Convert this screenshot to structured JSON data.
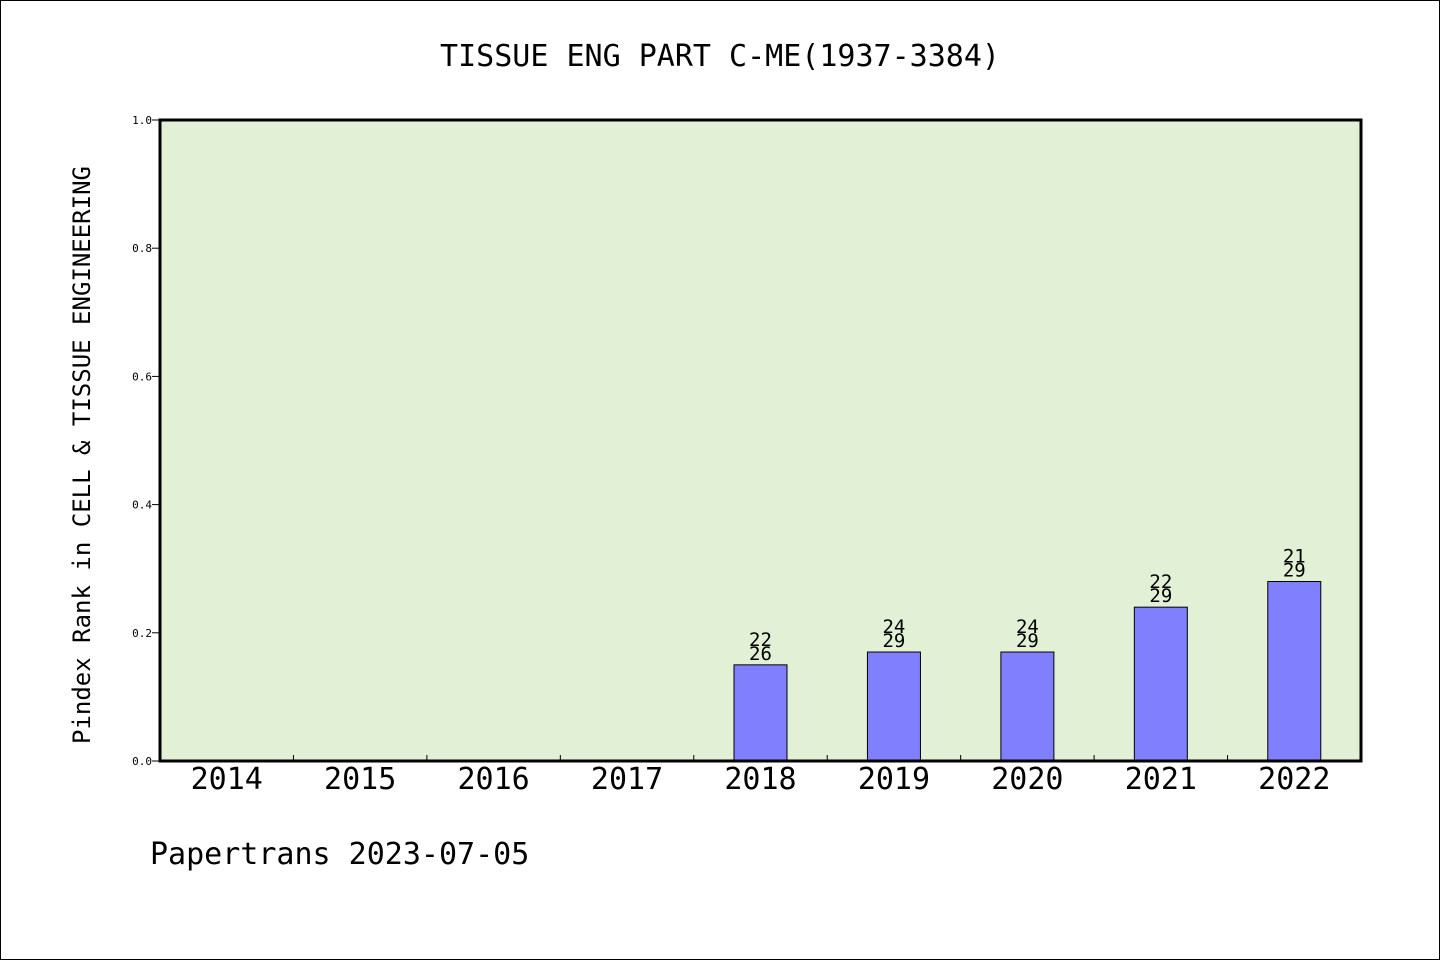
{
  "chart_data": {
    "type": "bar",
    "title": "TISSUE ENG PART C-ME(1937-3384)",
    "ylabel": "Pindex Rank in CELL & TISSUE ENGINEERING",
    "xlabel": "",
    "ylim": [
      0,
      1.0
    ],
    "yticks": [
      "0.0",
      "0.2",
      "0.4",
      "0.6",
      "0.8",
      "1.0"
    ],
    "categories": [
      "2014",
      "2015",
      "2016",
      "2017",
      "2018",
      "2019",
      "2020",
      "2021",
      "2022"
    ],
    "values": [
      null,
      null,
      null,
      null,
      0.15,
      0.17,
      0.17,
      0.24,
      0.28
    ],
    "rank_labels": [
      null,
      null,
      null,
      null,
      "22",
      "24",
      "24",
      "22",
      "21"
    ],
    "total_labels": [
      null,
      null,
      null,
      null,
      "26",
      "29",
      "29",
      "29",
      "29"
    ],
    "grid": false,
    "colors": {
      "plot_background": "#e2f0d6",
      "bar_fill": "#8080ff",
      "bar_stroke": "#000000",
      "axis": "#000000"
    }
  },
  "footer": {
    "credit": "Papertrans 2023-07-05"
  }
}
